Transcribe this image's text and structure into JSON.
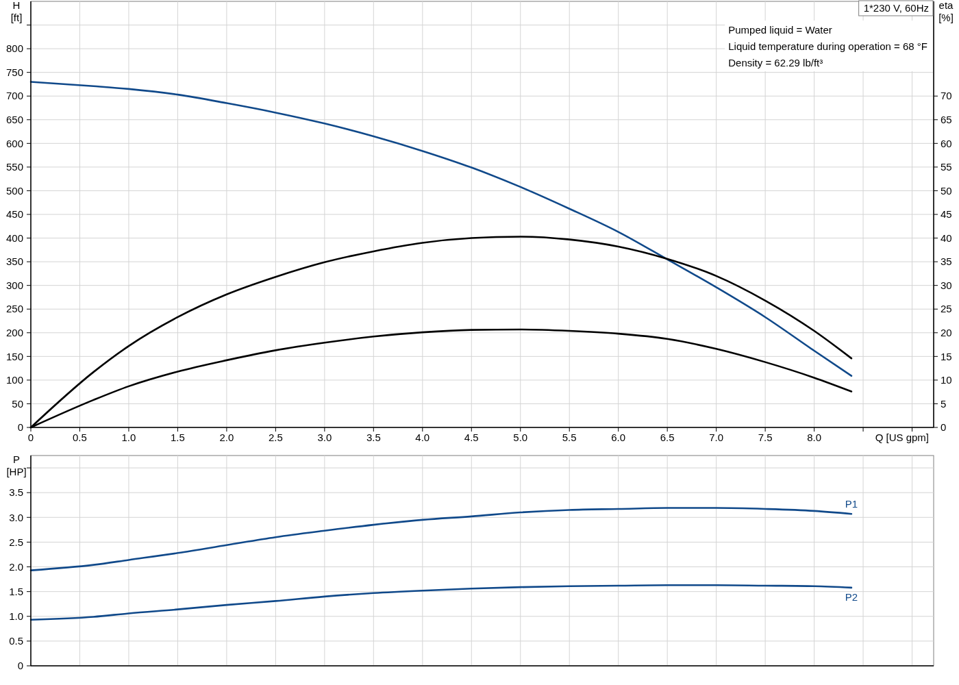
{
  "chart_data": [
    {
      "type": "line",
      "title": "1*230 V, 60Hz",
      "xlabel": "Q [US gpm]",
      "ylabel": "H\n[ft]",
      "y2label": "eta\n[%]",
      "annotations": [
        "Pumped liquid = Water",
        "Liquid temperature during operation = 68 °F",
        "Density = 62.29 lb/ft³"
      ],
      "xlim": [
        0,
        9.22
      ],
      "ylim": [
        0,
        900
      ],
      "y2lim": [
        0,
        90
      ],
      "xticks": [
        0,
        0.5,
        {
          "value": 1,
          "label": "1.0"
        },
        1.5,
        {
          "value": 2,
          "label": "2.0"
        },
        2.5,
        {
          "value": 3,
          "label": "3.0"
        },
        3.5,
        {
          "value": 4,
          "label": "4.0"
        },
        4.5,
        {
          "value": 5,
          "label": "5.0"
        },
        5.5,
        {
          "value": 6,
          "label": "6.0"
        },
        6.5,
        {
          "value": 7,
          "label": "7.0"
        },
        7.5,
        {
          "value": 8,
          "label": "8.0"
        },
        {
          "value": 8.5,
          "label": null
        },
        {
          "value": 9,
          "label": null
        }
      ],
      "yticks": [
        0,
        50,
        100,
        150,
        200,
        250,
        300,
        350,
        400,
        450,
        500,
        550,
        600,
        650,
        700,
        750,
        800,
        {
          "value": 850,
          "label": null
        }
      ],
      "y2ticks": [
        0,
        5,
        10,
        15,
        20,
        25,
        30,
        35,
        40,
        45,
        50,
        55,
        60,
        65,
        70
      ],
      "grid": true,
      "x": [
        0,
        0.64,
        1,
        1.5,
        2,
        2.5,
        3,
        3.5,
        4,
        4.5,
        5,
        5.5,
        6,
        6.5,
        7,
        7.5,
        8,
        8.38
      ],
      "series": [
        {
          "color": "#10498a",
          "values": [
            730,
            721,
            715,
            703,
            685,
            665,
            642,
            615,
            584,
            549,
            508,
            462,
            413,
            355,
            296,
            233,
            162,
            109
          ]
        },
        {
          "color": "#000000",
          "axis": "y2",
          "values": [
            0,
            11.7,
            17.2,
            23.3,
            28.1,
            31.8,
            34.9,
            37.2,
            39.0,
            40.0,
            40.3,
            39.7,
            38.2,
            35.6,
            32.0,
            26.8,
            20.4,
            14.6
          ]
        },
        {
          "color": "#000000",
          "axis": "y2",
          "values": [
            0,
            5.8,
            8.7,
            11.8,
            14.2,
            16.3,
            17.9,
            19.2,
            20.1,
            20.6,
            20.7,
            20.4,
            19.8,
            18.7,
            16.6,
            13.8,
            10.5,
            7.6
          ]
        }
      ]
    },
    {
      "type": "line",
      "ylabel": "P\n[HP]",
      "xlim": [
        0,
        9.22
      ],
      "ylim": [
        0,
        4.25
      ],
      "tick_labels": "y",
      "xticks": [
        0,
        0.5,
        1,
        1.5,
        2,
        2.5,
        3,
        3.5,
        4,
        4.5,
        5,
        5.5,
        6,
        6.5,
        7,
        7.5,
        8,
        8.5,
        9
      ],
      "yticks": [
        0,
        0.5,
        {
          "value": 1,
          "label": "1.0"
        },
        1.5,
        {
          "value": 2,
          "label": "2.0"
        },
        2.5,
        {
          "value": 3,
          "label": "3.0"
        },
        3.5,
        {
          "value": 4,
          "label": null
        }
      ],
      "grid": true,
      "x": [
        0,
        0.64,
        1,
        1.5,
        2,
        2.5,
        3,
        3.5,
        4,
        4.5,
        5,
        5.5,
        6,
        6.5,
        7,
        7.5,
        8,
        8.38
      ],
      "series": [
        {
          "name": "P1",
          "color": "#10498a",
          "values": [
            1.93,
            2.04,
            2.14,
            2.28,
            2.44,
            2.6,
            2.73,
            2.85,
            2.95,
            3.02,
            3.1,
            3.15,
            3.17,
            3.19,
            3.19,
            3.17,
            3.13,
            3.07
          ]
        },
        {
          "name": "P2",
          "color": "#10498a",
          "values": [
            0.93,
            0.99,
            1.06,
            1.14,
            1.23,
            1.31,
            1.4,
            1.47,
            1.52,
            1.56,
            1.59,
            1.61,
            1.62,
            1.63,
            1.63,
            1.62,
            1.61,
            1.58
          ]
        }
      ]
    }
  ]
}
